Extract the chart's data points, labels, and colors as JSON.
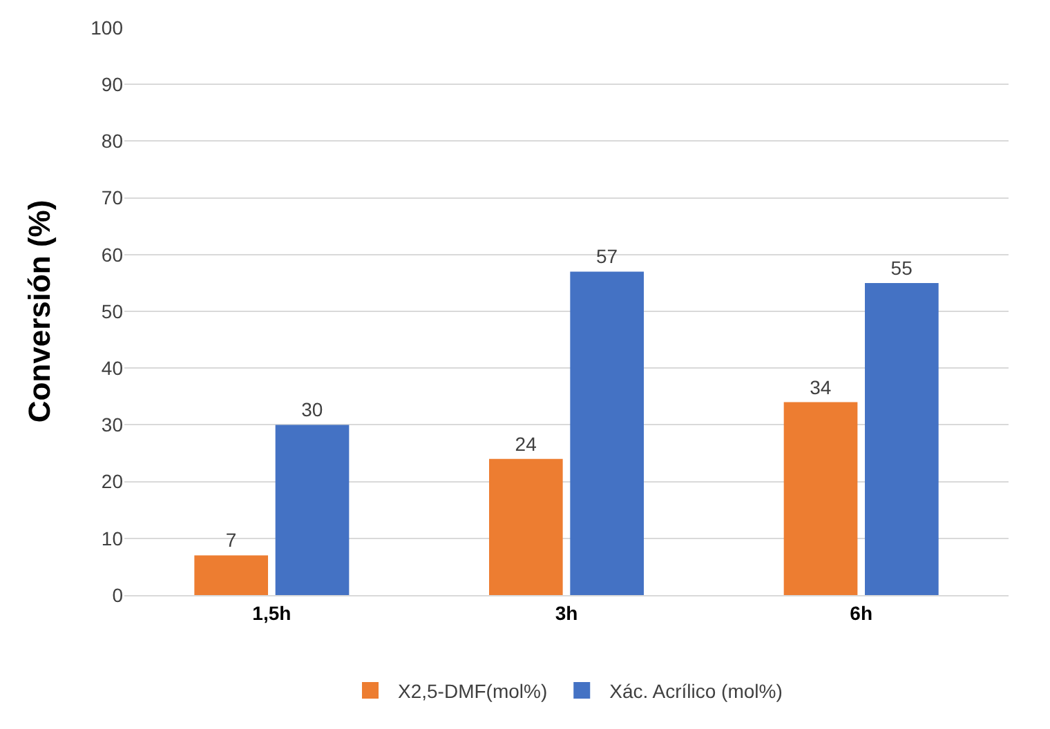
{
  "chart_data": {
    "type": "bar",
    "ylabel": "Conversión (%)",
    "categories": [
      "1,5h",
      "3h",
      "6h"
    ],
    "series": [
      {
        "name": "X2,5-DMF(mol%)",
        "color": "#ed7d31",
        "values": [
          7,
          24,
          34
        ]
      },
      {
        "name": "Xác. Acrílico (mol%)",
        "color": "#4472c4",
        "values": [
          30,
          57,
          55
        ]
      }
    ],
    "ylim": [
      0,
      100
    ],
    "yticks": [
      0,
      10,
      20,
      30,
      40,
      50,
      60,
      70,
      80,
      90,
      100
    ],
    "grid": "y",
    "legend": "bottom",
    "data_labels": true
  }
}
